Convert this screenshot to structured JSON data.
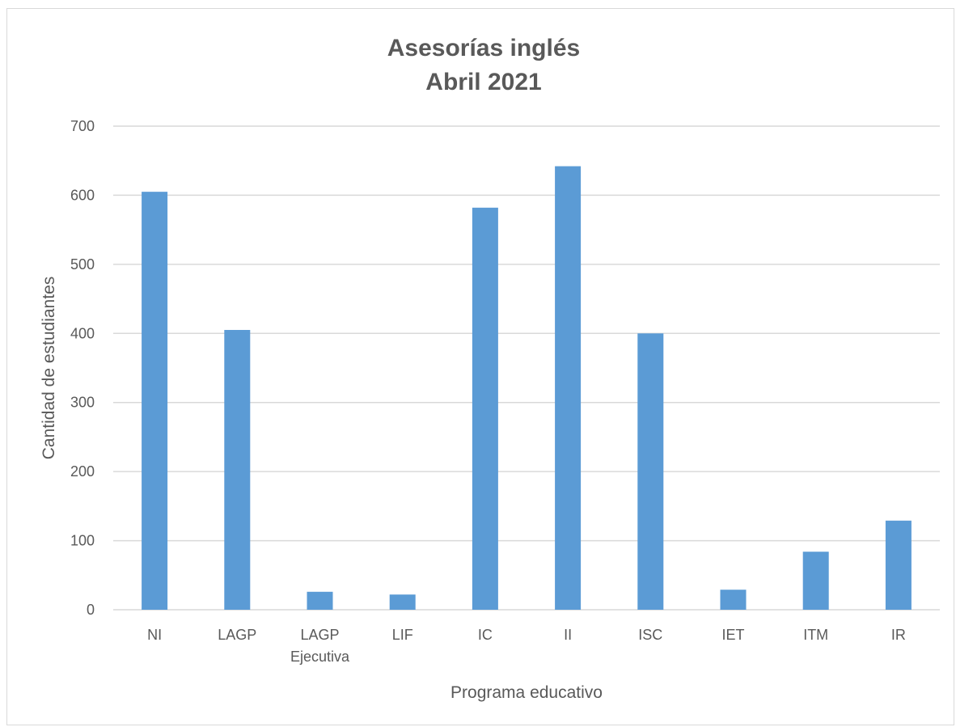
{
  "chart_data": {
    "type": "bar",
    "title": [
      "Asesorías inglés",
      "Abril 2021"
    ],
    "xlabel": "Programa educativo",
    "ylabel": "Cantidad de estudiantes",
    "categories": [
      [
        "NI"
      ],
      [
        "LAGP"
      ],
      [
        "LAGP",
        "Ejecutiva"
      ],
      [
        "LIF"
      ],
      [
        "IC"
      ],
      [
        "II"
      ],
      [
        "ISC"
      ],
      [
        "IET"
      ],
      [
        "ITM"
      ],
      [
        "IR"
      ]
    ],
    "values": [
      605,
      405,
      26,
      22,
      582,
      642,
      400,
      29,
      84,
      129
    ],
    "ylim": [
      0,
      700
    ],
    "yticks": [
      0,
      100,
      200,
      300,
      400,
      500,
      600,
      700
    ],
    "grid": true,
    "legend": "none",
    "bar_color": "#5b9bd5",
    "grid_color": "#d9d9d9"
  }
}
